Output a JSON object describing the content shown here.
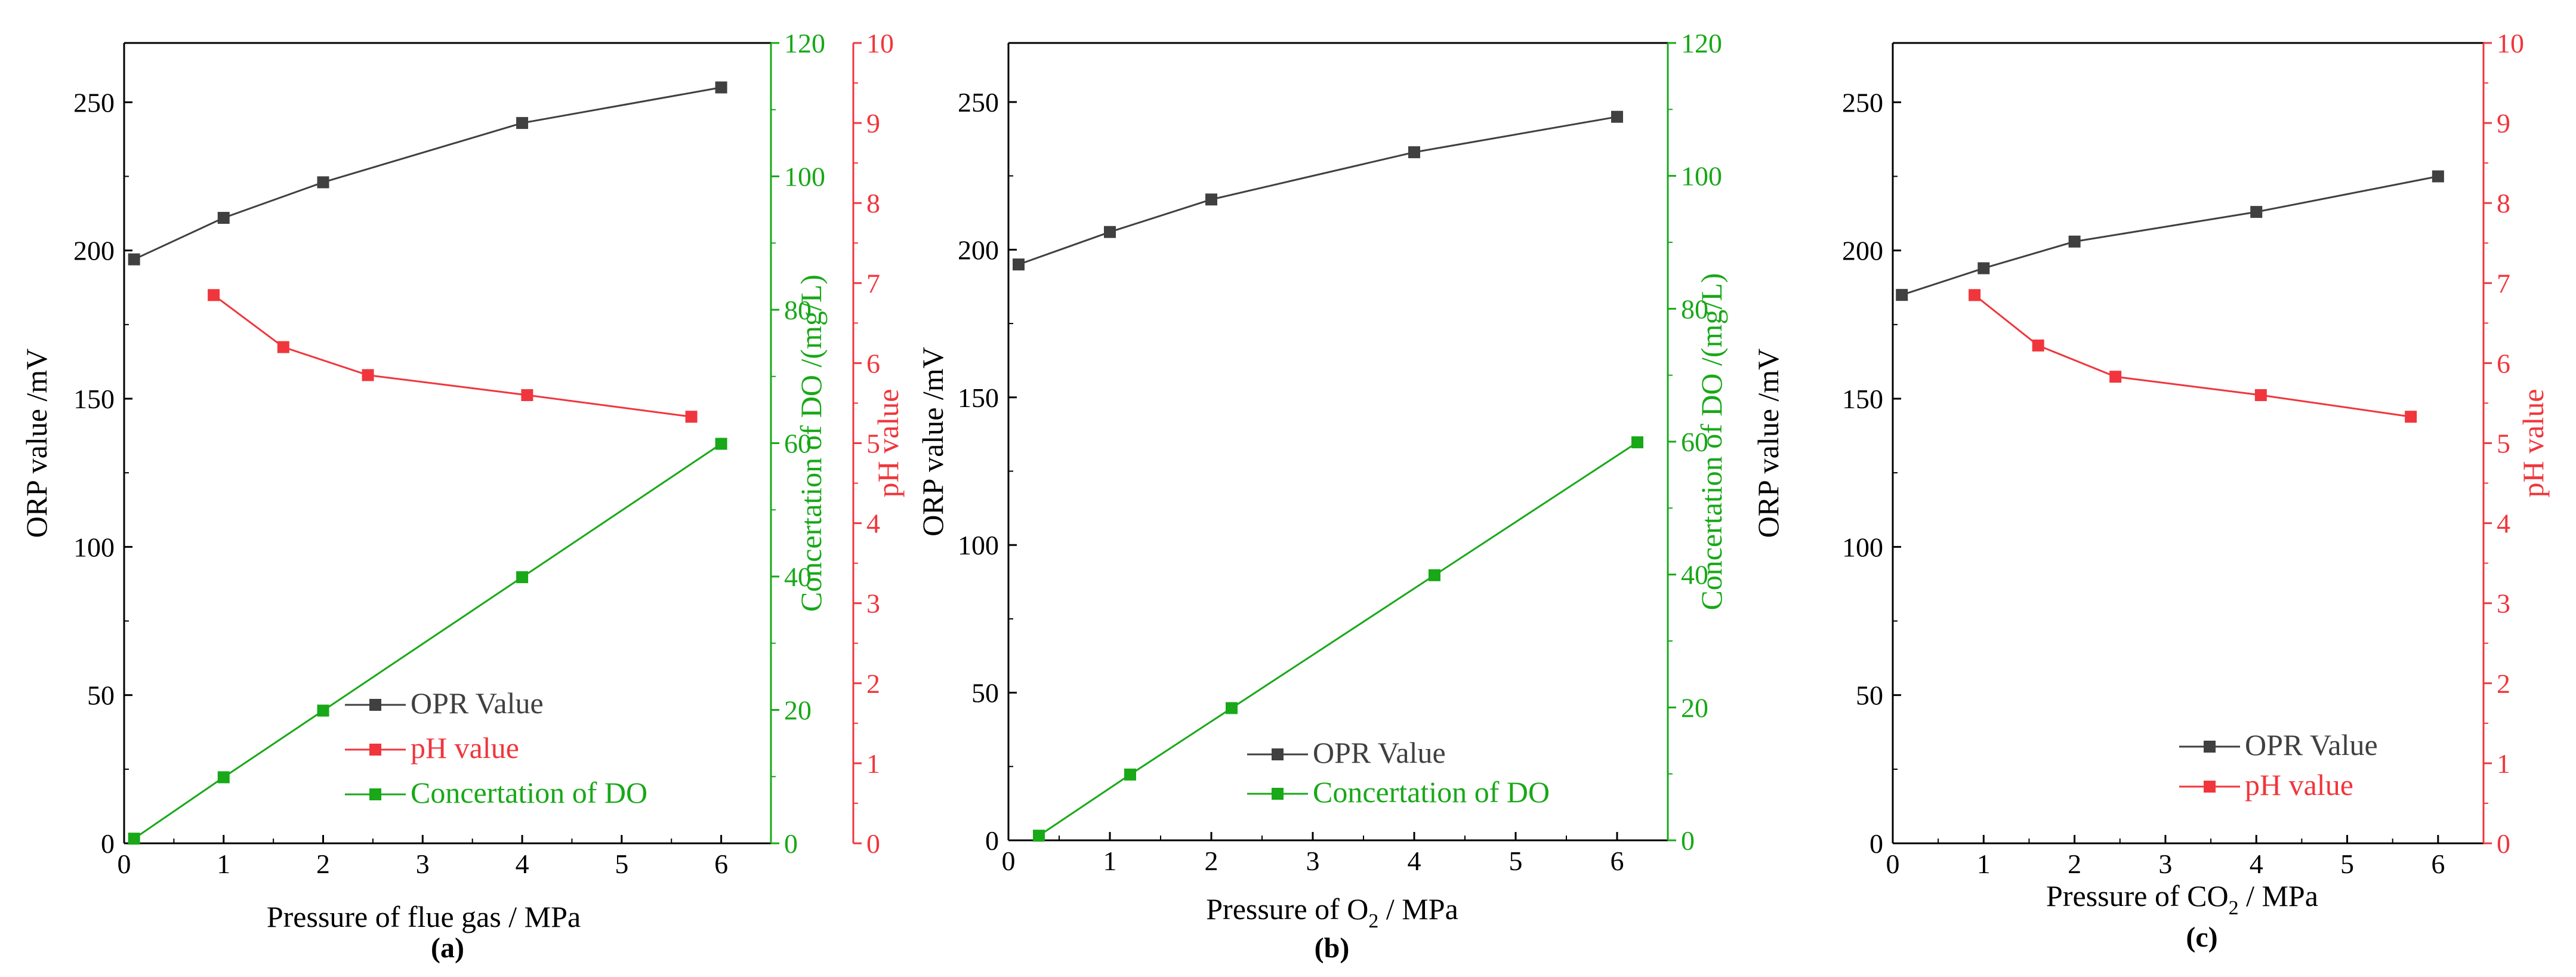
{
  "colors": {
    "orp": "#404040",
    "ph": "#f0363c",
    "do": "#18a818",
    "axis": "#000000"
  },
  "chart_data": [
    {
      "type": "line",
      "caption": "(a)",
      "xlabel": "Pressure of flue gas / MPa",
      "xlim": [
        0,
        6.5
      ],
      "xticks": [
        "0",
        "1",
        "2",
        "3",
        "4",
        "5",
        "6"
      ],
      "axes": {
        "left": {
          "label": "ORP value /mV",
          "ylim": [
            0,
            270
          ],
          "ticks": [
            "0",
            "50",
            "100",
            "150",
            "200",
            "250"
          ]
        },
        "right1": {
          "label": "Concertation of DO /(mg/L)",
          "ylim": [
            0,
            120
          ],
          "ticks": [
            "0",
            "20",
            "40",
            "60",
            "80",
            "100",
            "120"
          ]
        },
        "right2": {
          "label": "pH value",
          "ylim": [
            0,
            10
          ],
          "ticks": [
            "0",
            "1",
            "2",
            "3",
            "4",
            "5",
            "6",
            "7",
            "8",
            "9",
            "10"
          ]
        }
      },
      "series": [
        {
          "name": "OPR Value",
          "axis": "left",
          "color": "orp",
          "x": [
            0.1,
            1,
            2,
            4,
            6
          ],
          "y": [
            197,
            211,
            223,
            243,
            255
          ]
        },
        {
          "name": "pH value",
          "axis": "right2",
          "color": "ph",
          "x": [
            0.9,
            1.6,
            2.45,
            4.05,
            5.7
          ],
          "y": [
            6.85,
            6.2,
            5.85,
            5.6,
            5.33
          ]
        },
        {
          "name": "Concertation of DO",
          "axis": "right1",
          "color": "do",
          "x": [
            0.1,
            1,
            2,
            4,
            6
          ],
          "y": [
            0.7,
            9.9,
            19.9,
            39.9,
            59.9
          ]
        }
      ],
      "legend": [
        "OPR Value",
        "pH value",
        "Concertation of DO"
      ]
    },
    {
      "type": "line",
      "caption": "(b)",
      "xlabel_main": "Pressure of O",
      "xlabel_sub": "2",
      "xlabel_end": " / MPa",
      "xlim": [
        0,
        6.5
      ],
      "xticks": [
        "0",
        "1",
        "2",
        "3",
        "4",
        "5",
        "6"
      ],
      "axes": {
        "left": {
          "label": "ORP value /mV",
          "ylim": [
            0,
            270
          ],
          "ticks": [
            "0",
            "50",
            "100",
            "150",
            "200",
            "250"
          ]
        },
        "right1": {
          "label": "Concertation of DO /(mg/L)",
          "ylim": [
            0,
            120
          ],
          "ticks": [
            "0",
            "20",
            "40",
            "60",
            "80",
            "100",
            "120"
          ]
        }
      },
      "series": [
        {
          "name": "OPR Value",
          "axis": "left",
          "color": "orp",
          "x": [
            0.1,
            1,
            2,
            4,
            6
          ],
          "y": [
            195,
            206,
            217,
            233,
            245
          ]
        },
        {
          "name": "Concertation of DO",
          "axis": "right1",
          "color": "do",
          "x": [
            0.3,
            1.2,
            2.2,
            4.2,
            6.2
          ],
          "y": [
            0.7,
            9.9,
            19.9,
            39.9,
            59.9
          ]
        }
      ],
      "legend": [
        "OPR Value",
        "Concertation of DO"
      ]
    },
    {
      "type": "line",
      "caption": "(c)",
      "xlabel_main": "Pressure of CO",
      "xlabel_sub": "2",
      "xlabel_end": " / MPa",
      "xlim": [
        0,
        6.5
      ],
      "xticks": [
        "0",
        "1",
        "2",
        "3",
        "4",
        "5",
        "6"
      ],
      "axes": {
        "left": {
          "label": "ORP value /mV",
          "ylim": [
            0,
            270
          ],
          "ticks": [
            "0",
            "50",
            "100",
            "150",
            "200",
            "250"
          ]
        },
        "right2": {
          "label": "pH value",
          "ylim": [
            0,
            10
          ],
          "ticks": [
            "0",
            "1",
            "2",
            "3",
            "4",
            "5",
            "6",
            "7",
            "8",
            "9",
            "10"
          ]
        }
      },
      "series": [
        {
          "name": "OPR Value",
          "axis": "left",
          "color": "orp",
          "x": [
            0.1,
            1,
            2,
            4,
            6
          ],
          "y": [
            185,
            194,
            203,
            213,
            225
          ]
        },
        {
          "name": "pH value",
          "axis": "right2",
          "color": "ph",
          "x": [
            0.9,
            1.6,
            2.45,
            4.05,
            5.7
          ],
          "y": [
            6.85,
            6.22,
            5.83,
            5.6,
            5.33
          ]
        }
      ],
      "legend": [
        "OPR Value",
        "pH value"
      ]
    }
  ]
}
